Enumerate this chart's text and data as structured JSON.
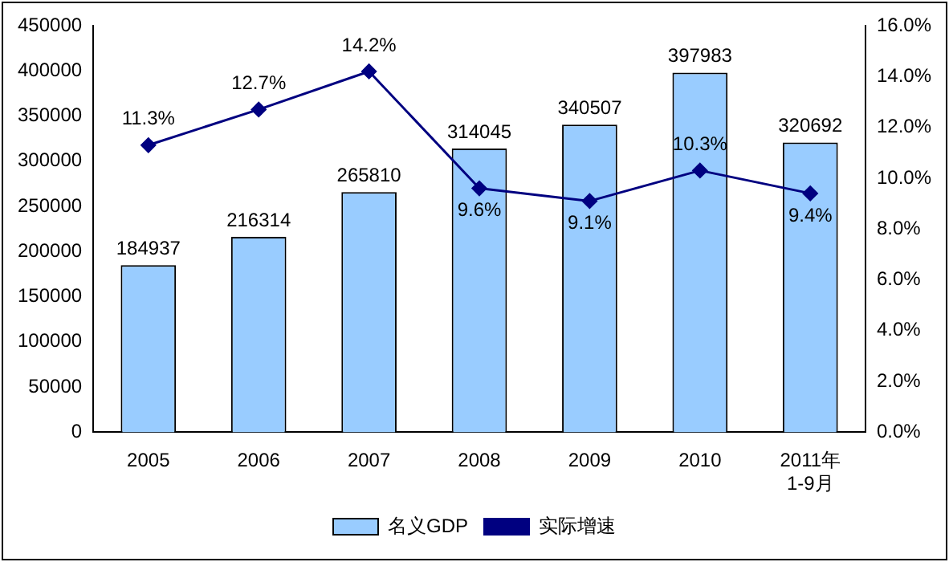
{
  "chart_data": {
    "type": "bar",
    "categories": [
      "2005",
      "2006",
      "2007",
      "2008",
      "2009",
      "2010",
      "2011年\n1-9月"
    ],
    "series": [
      {
        "name": "名义GDP",
        "color": "#99ccff",
        "values": [
          184937,
          216314,
          265810,
          314045,
          340507,
          397983,
          320692
        ]
      },
      {
        "name": "实际增速",
        "type": "line",
        "axis": "y2",
        "color": "#000080",
        "values": [
          11.3,
          12.7,
          14.2,
          9.6,
          9.1,
          10.3,
          9.4
        ],
        "value_labels": [
          "11.3%",
          "12.7%",
          "14.2%",
          "9.6%",
          "9.1%",
          "10.3%",
          "9.4%"
        ]
      }
    ],
    "ylim": [
      0,
      450000
    ],
    "yticks": [
      0,
      50000,
      100000,
      150000,
      200000,
      250000,
      300000,
      350000,
      400000,
      450000
    ],
    "y2lim": [
      0,
      16
    ],
    "y2ticks": [
      {
        "value": 0,
        "label": "0.0%"
      },
      {
        "value": 2,
        "label": "2.0%"
      },
      {
        "value": 4,
        "label": "4.0%"
      },
      {
        "value": 6,
        "label": "6.0%"
      },
      {
        "value": 8,
        "label": "8.0%"
      },
      {
        "value": 10,
        "label": "10.0%"
      },
      {
        "value": 12,
        "label": "12.0%"
      },
      {
        "value": 14,
        "label": "14.0%"
      },
      {
        "value": 16,
        "label": "16.0%"
      }
    ],
    "data_labels": true,
    "legend": "bottom",
    "marker": "diamond",
    "grid": false
  }
}
